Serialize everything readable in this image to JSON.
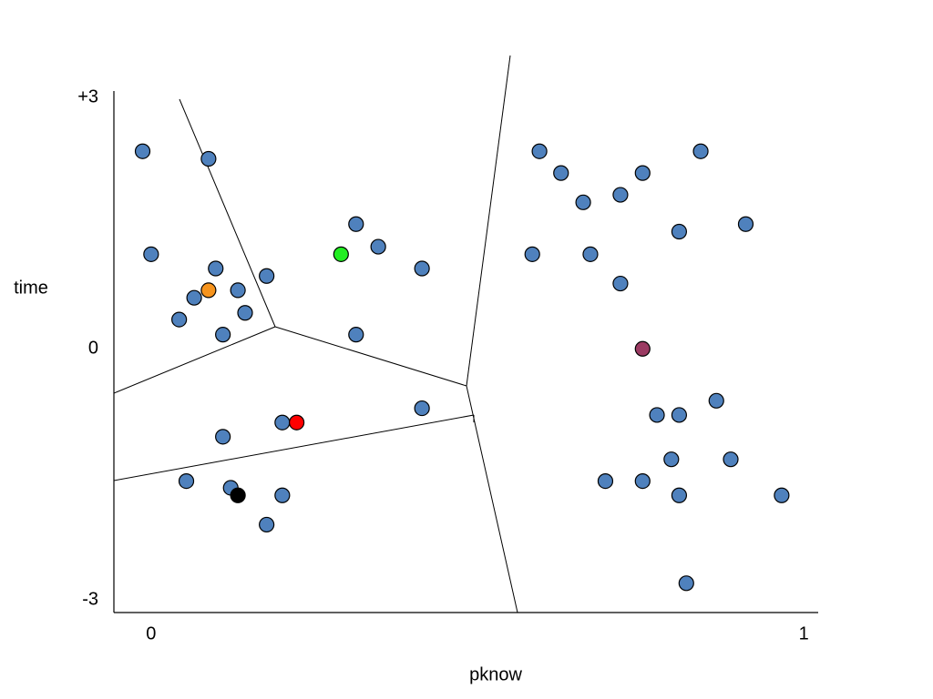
{
  "chart_data": {
    "type": "scatter",
    "x_label": "pknow",
    "y_label": "time",
    "xlim": [
      -0.057,
      1.022
    ],
    "ylim": [
      -3.15,
      3.08
    ],
    "xticks": [
      0,
      1
    ],
    "yticks": [
      -3,
      0,
      {
        "value": 3,
        "label": "+3"
      }
    ],
    "grid": false,
    "series": [
      {
        "color": "#4f81bd",
        "x": [
          -0.013,
          0.088,
          0.0,
          0.099,
          0.066,
          0.133,
          0.043,
          0.144,
          0.11,
          0.177,
          0.314,
          0.348,
          0.415,
          0.314,
          0.415,
          0.201,
          0.11,
          0.054,
          0.122,
          0.201,
          0.177,
          0.595,
          0.628,
          0.662,
          0.719,
          0.753,
          0.842,
          0.809,
          0.911,
          0.584,
          0.673,
          0.719,
          0.866,
          0.775,
          0.809,
          0.797,
          0.888,
          0.696,
          0.753,
          0.809,
          0.966,
          0.82
        ],
        "values": [
          2.36,
          2.27,
          1.13,
          0.96,
          0.61,
          0.7,
          0.35,
          0.43,
          0.17,
          0.87,
          1.49,
          1.22,
          0.96,
          0.17,
          -0.71,
          -0.88,
          -1.05,
          -1.58,
          -1.66,
          -1.75,
          -2.1,
          2.36,
          2.1,
          1.75,
          1.84,
          2.1,
          2.36,
          1.4,
          1.49,
          1.13,
          1.13,
          0.78,
          -0.62,
          -0.79,
          -0.79,
          -1.32,
          -1.32,
          -1.58,
          -1.58,
          -1.75,
          -1.75,
          -2.8
        ]
      },
      {
        "color": "#f7941d",
        "x": [
          0.088
        ],
        "values": [
          0.7
        ]
      },
      {
        "color": "#22ee22",
        "x": [
          0.291
        ],
        "values": [
          1.13
        ]
      },
      {
        "color": "#ff0000",
        "x": [
          0.223
        ],
        "values": [
          -0.88
        ]
      },
      {
        "color": "#000000",
        "x": [
          0.133
        ],
        "values": [
          -1.75
        ]
      },
      {
        "color": "#9b3a62",
        "x": [
          0.753
        ],
        "values": [
          0.0
        ]
      }
    ]
  }
}
